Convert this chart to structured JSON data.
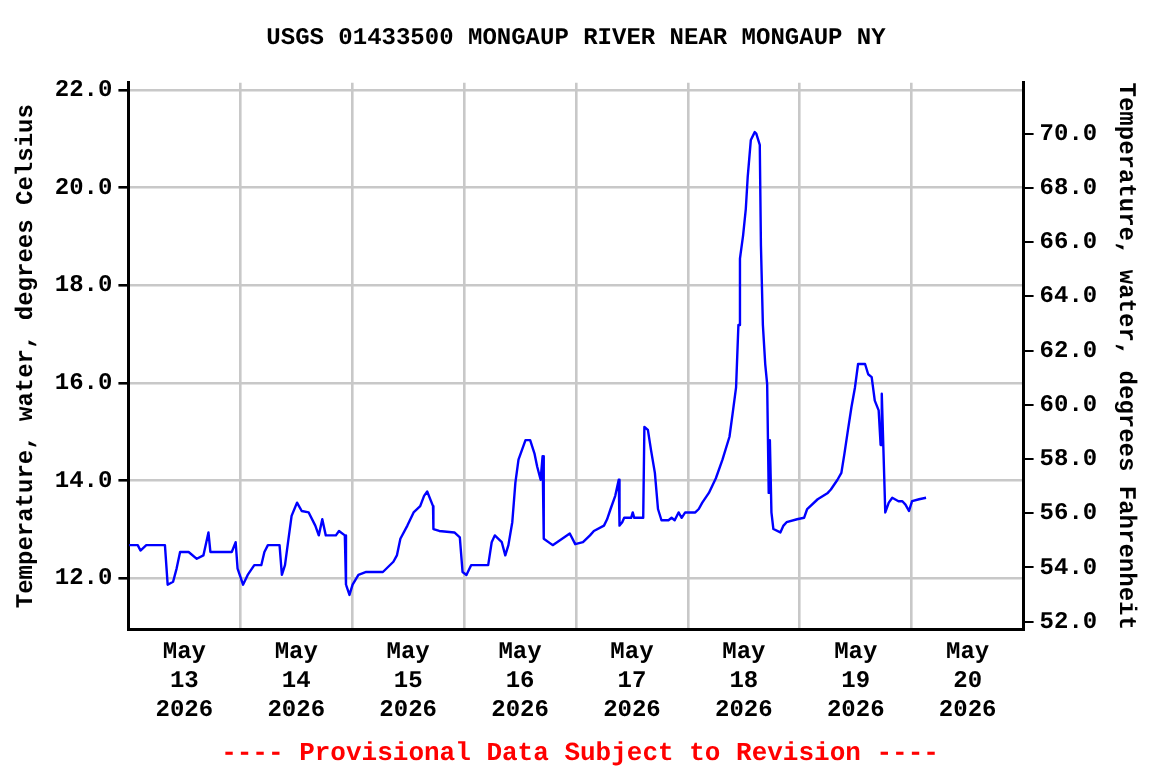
{
  "chart_data": {
    "type": "line",
    "title": "USGS 01433500 MONGAUP RIVER NEAR MONGAUP NY",
    "ylabel": "Temperature, water, degrees Celsius",
    "y2label": "Temperature, water, degrees Fahrenheit",
    "annotations": [
      "---- Provisional Data Subject to Revision ----"
    ],
    "xlim": [
      "2026-05-13T00:00",
      "2026-05-21T00:00"
    ],
    "xticks": [
      {
        "value": "2026-05-13T12:00",
        "label": "May\n13\n2026"
      },
      {
        "value": "2026-05-14T00:00",
        "label": null
      },
      {
        "value": "2026-05-14T12:00",
        "label": "May\n14\n2026"
      },
      {
        "value": "2026-05-15T00:00",
        "label": null
      },
      {
        "value": "2026-05-15T12:00",
        "label": "May\n15\n2026"
      },
      {
        "value": "2026-05-16T00:00",
        "label": null
      },
      {
        "value": "2026-05-16T12:00",
        "label": "May\n16\n2026"
      },
      {
        "value": "2026-05-17T00:00",
        "label": null
      },
      {
        "value": "2026-05-17T12:00",
        "label": "May\n17\n2026"
      },
      {
        "value": "2026-05-18T00:00",
        "label": null
      },
      {
        "value": "2026-05-18T12:00",
        "label": "May\n18\n2026"
      },
      {
        "value": "2026-05-19T00:00",
        "label": null
      },
      {
        "value": "2026-05-19T12:00",
        "label": "May\n19\n2026"
      },
      {
        "value": "2026-05-20T00:00",
        "label": null
      },
      {
        "value": "2026-05-20T12:00",
        "label": "May\n20\n2026"
      }
    ],
    "ylim": [
      10.95,
      22.15
    ],
    "yticks": [
      {
        "value": 12,
        "label": "12.0"
      },
      {
        "value": 14,
        "label": "14.0"
      },
      {
        "value": 16,
        "label": "16.0"
      },
      {
        "value": 18,
        "label": "18.0"
      },
      {
        "value": 20,
        "label": "20.0"
      },
      {
        "value": 22,
        "label": "22.0"
      }
    ],
    "y2lim": [
      51.71,
      71.87
    ],
    "y2ticks": [
      {
        "value": 52,
        "label": "52.0"
      },
      {
        "value": 54,
        "label": "54.0"
      },
      {
        "value": 56,
        "label": "56.0"
      },
      {
        "value": 58,
        "label": "58.0"
      },
      {
        "value": 60,
        "label": "60.0"
      },
      {
        "value": 62,
        "label": "62.0"
      },
      {
        "value": 64,
        "label": "64.0"
      },
      {
        "value": 66,
        "label": "66.0"
      },
      {
        "value": 68,
        "label": "68.0"
      },
      {
        "value": 70,
        "label": "70.0"
      }
    ],
    "grid": true,
    "legend": false,
    "marker": "none",
    "line_style": "solid",
    "x": [
      "2026-05-13T00:10",
      "2026-05-13T02:00",
      "2026-05-13T02:35",
      "2026-05-13T03:50",
      "2026-05-13T05:55",
      "2026-05-13T07:50",
      "2026-05-13T08:25",
      "2026-05-13T09:35",
      "2026-05-13T10:20",
      "2026-05-13T11:05",
      "2026-05-13T12:55",
      "2026-05-13T14:40",
      "2026-05-13T16:05",
      "2026-05-13T17:10",
      "2026-05-13T17:35",
      "2026-05-13T19:00",
      "2026-05-13T22:10",
      "2026-05-13T23:00",
      "2026-05-13T23:25",
      "2026-05-14T00:35",
      "2026-05-14T01:35",
      "2026-05-14T03:00",
      "2026-05-14T04:30",
      "2026-05-14T05:10",
      "2026-05-14T05:55",
      "2026-05-14T08:25",
      "2026-05-14T08:55",
      "2026-05-14T09:35",
      "2026-05-14T10:20",
      "2026-05-14T11:00",
      "2026-05-14T12:10",
      "2026-05-14T13:10",
      "2026-05-14T14:40",
      "2026-05-14T16:05",
      "2026-05-14T16:50",
      "2026-05-14T17:35",
      "2026-05-14T18:20",
      "2026-05-14T20:30",
      "2026-05-14T21:10",
      "2026-05-14T22:25",
      "2026-05-14T22:40",
      "2026-05-14T23:25",
      "2026-05-15T00:05",
      "2026-05-15T01:20",
      "2026-05-15T03:00",
      "2026-05-15T06:35",
      "2026-05-15T08:50",
      "2026-05-15T09:35",
      "2026-05-15T10:20",
      "2026-05-15T11:50",
      "2026-05-15T13:10",
      "2026-05-15T14:35",
      "2026-05-15T15:25",
      "2026-05-15T16:05",
      "2026-05-15T17:20",
      "2026-05-15T17:25",
      "2026-05-15T18:40",
      "2026-05-15T21:55",
      "2026-05-15T23:05",
      "2026-05-15T23:40",
      "2026-05-16T00:30",
      "2026-05-16T01:30",
      "2026-05-16T05:10",
      "2026-05-16T05:55",
      "2026-05-16T06:35",
      "2026-05-16T08:05",
      "2026-05-16T08:50",
      "2026-05-16T09:30",
      "2026-05-16T10:20",
      "2026-05-16T11:00",
      "2026-05-16T11:40",
      "2026-05-16T13:10",
      "2026-05-16T14:10",
      "2026-05-16T15:05",
      "2026-05-16T15:40",
      "2026-05-16T16:25",
      "2026-05-16T16:50",
      "2026-05-16T17:05",
      "2026-05-16T19:00",
      "2026-05-16T22:40",
      "2026-05-16T23:50",
      "2026-05-17T01:30",
      "2026-05-17T03:00",
      "2026-05-17T03:50",
      "2026-05-17T06:00",
      "2026-05-17T06:40",
      "2026-05-17T07:25",
      "2026-05-17T08:25",
      "2026-05-17T09:10",
      "2026-05-17T09:20",
      "2026-05-17T09:55",
      "2026-05-17T10:20",
      "2026-05-17T11:50",
      "2026-05-17T12:10",
      "2026-05-17T12:30",
      "2026-05-17T14:25",
      "2026-05-17T14:40",
      "2026-05-17T15:25",
      "2026-05-17T16:05",
      "2026-05-17T16:55",
      "2026-05-17T17:35",
      "2026-05-17T18:20",
      "2026-05-17T19:50",
      "2026-05-17T20:30",
      "2026-05-17T21:10",
      "2026-05-17T22:00",
      "2026-05-17T22:40",
      "2026-05-17T23:25",
      "2026-05-18T01:35",
      "2026-05-18T02:20",
      "2026-05-18T03:05",
      "2026-05-18T04:30",
      "2026-05-18T06:00",
      "2026-05-18T07:25",
      "2026-05-18T08:55",
      "2026-05-18T09:35",
      "2026-05-18T10:20",
      "2026-05-18T10:50",
      "2026-05-18T11:10",
      "2026-05-18T11:50",
      "2026-05-18T12:25",
      "2026-05-18T12:50",
      "2026-05-18T13:30",
      "2026-05-18T14:20",
      "2026-05-18T14:40",
      "2026-05-18T15:25",
      "2026-05-18T15:40",
      "2026-05-18T16:05",
      "2026-05-18T16:35",
      "2026-05-18T17:00",
      "2026-05-18T17:20",
      "2026-05-18T17:35",
      "2026-05-18T17:55",
      "2026-05-18T18:20",
      "2026-05-18T19:50",
      "2026-05-18T20:30",
      "2026-05-18T21:10",
      "2026-05-18T23:25",
      "2026-05-19T00:55",
      "2026-05-19T01:35",
      "2026-05-19T03:50",
      "2026-05-19T06:00",
      "2026-05-19T06:40",
      "2026-05-19T08:05",
      "2026-05-19T08:55",
      "2026-05-19T09:35",
      "2026-05-19T10:20",
      "2026-05-19T11:05",
      "2026-05-19T11:50",
      "2026-05-19T12:30",
      "2026-05-19T14:00",
      "2026-05-19T14:40",
      "2026-05-19T15:25",
      "2026-05-19T16:05",
      "2026-05-19T16:55",
      "2026-05-19T17:20",
      "2026-05-19T17:35",
      "2026-05-19T17:55",
      "2026-05-19T18:20",
      "2026-05-19T19:05",
      "2026-05-19T19:50",
      "2026-05-19T21:10",
      "2026-05-19T22:00",
      "2026-05-19T22:40",
      "2026-05-19T23:25",
      "2026-05-20T00:05",
      "2026-05-20T01:35",
      "2026-05-20T03:05"
    ],
    "series": [
      {
        "color": "#0000ff",
        "values": [
          12.68,
          12.68,
          12.57,
          12.68,
          12.68,
          12.68,
          11.87,
          11.93,
          12.2,
          12.54,
          12.54,
          12.4,
          12.47,
          12.94,
          12.54,
          12.54,
          12.54,
          12.74,
          12.2,
          11.87,
          12.07,
          12.27,
          12.27,
          12.54,
          12.68,
          12.68,
          12.07,
          12.27,
          12.81,
          13.28,
          13.55,
          13.38,
          13.35,
          13.08,
          12.88,
          13.21,
          12.88,
          12.88,
          12.97,
          12.88,
          11.87,
          11.66,
          11.87,
          12.07,
          12.13,
          12.13,
          12.34,
          12.47,
          12.81,
          13.08,
          13.35,
          13.48,
          13.69,
          13.78,
          13.48,
          13.01,
          12.97,
          12.94,
          12.84,
          12.13,
          12.07,
          12.27,
          12.27,
          12.74,
          12.88,
          12.74,
          12.47,
          12.68,
          13.15,
          13.96,
          14.43,
          14.83,
          14.83,
          14.56,
          14.29,
          14.02,
          14.5,
          12.81,
          12.68,
          12.92,
          12.7,
          12.74,
          12.88,
          12.97,
          13.08,
          13.21,
          13.42,
          13.69,
          14.02,
          13.08,
          13.15,
          13.24,
          13.24,
          13.35,
          13.24,
          13.24,
          15.1,
          15.04,
          14.63,
          14.16,
          13.42,
          13.19,
          13.19,
          13.24,
          13.19,
          13.35,
          13.24,
          13.35,
          13.35,
          13.42,
          13.55,
          13.75,
          14.05,
          14.43,
          14.9,
          15.37,
          15.91,
          17.19,
          18.55,
          19.02,
          19.56,
          20.23,
          20.98,
          21.14,
          21.11,
          20.88,
          18.81,
          17.19,
          16.39,
          15.98,
          13.75,
          14.83,
          13.35,
          13.01,
          12.94,
          13.08,
          13.15,
          13.21,
          13.24,
          13.42,
          13.62,
          13.75,
          13.82,
          14.02,
          14.16,
          14.56,
          15.04,
          15.51,
          15.91,
          16.39,
          16.39,
          16.18,
          16.12,
          15.64,
          15.44,
          14.73,
          15.78,
          14.7,
          13.35,
          13.55,
          13.65,
          13.58,
          13.58,
          13.51,
          13.38,
          13.58,
          13.62,
          13.65
        ]
      }
    ]
  }
}
